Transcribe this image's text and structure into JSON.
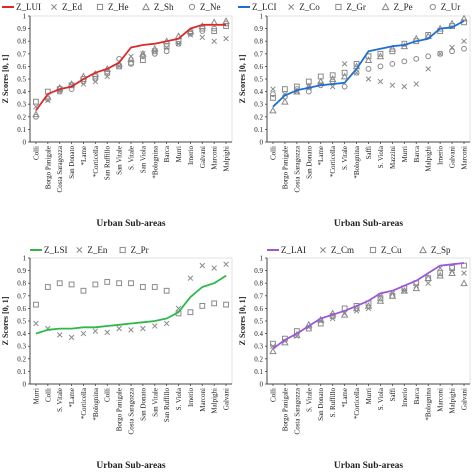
{
  "figure": {
    "background": "#ffffff",
    "axis_color": "#444444"
  },
  "chart_data": [
    {
      "id": "lui",
      "type": "line",
      "line_color": "#d92b2b",
      "xlabel": "Urban Sub-areas",
      "ylabel": "Z Scores [0, 1]",
      "ylim": [
        0,
        1
      ],
      "yticks": [
        "0",
        "0.1",
        "0.2",
        "0.3",
        "0.4",
        "0.5",
        "0.6",
        "0.7",
        "0.8",
        "0.9",
        "1"
      ],
      "legend_position": "top",
      "legend": [
        {
          "name": "Z_LUI",
          "marker": "line"
        },
        {
          "name": "Z_Ed",
          "marker": "x"
        },
        {
          "name": "Z_He",
          "marker": "square"
        },
        {
          "name": "Z_Sh",
          "marker": "triangle"
        },
        {
          "name": "Z_Ne",
          "marker": "circle"
        }
      ],
      "categories": [
        "Colli",
        "Borgo Panigale",
        "Costa Saragozza",
        "San Donato",
        "*Lame",
        "*Corticella",
        "San Ruffillo",
        "San Vitale",
        "S. Vitale",
        "San Viola",
        "*Bolognina",
        "Barca",
        "Murri",
        "Irnerio",
        "Galvani",
        "Marconi",
        "Malpighi"
      ],
      "series": [
        {
          "name": "Z_LUI",
          "marker": "line",
          "values": [
            0.25,
            0.38,
            0.42,
            0.44,
            0.5,
            0.55,
            0.58,
            0.63,
            0.75,
            0.77,
            0.78,
            0.8,
            0.82,
            0.9,
            0.93,
            0.93,
            0.93
          ]
        },
        {
          "name": "Z_Ed",
          "marker": "x",
          "values": [
            0.28,
            0.33,
            0.4,
            0.45,
            0.46,
            0.48,
            0.52,
            0.6,
            0.68,
            0.7,
            0.72,
            0.75,
            0.78,
            0.85,
            0.83,
            0.8,
            0.82
          ]
        },
        {
          "name": "Z_He",
          "marker": "square",
          "values": [
            0.32,
            0.4,
            0.42,
            0.45,
            0.5,
            0.52,
            0.55,
            0.6,
            0.63,
            0.65,
            0.72,
            0.76,
            0.8,
            0.87,
            0.9,
            0.88,
            0.92
          ]
        },
        {
          "name": "Z_Sh",
          "marker": "triangle",
          "values": [
            0.22,
            0.36,
            0.43,
            0.46,
            0.52,
            0.54,
            0.58,
            0.62,
            0.66,
            0.7,
            0.74,
            0.8,
            0.84,
            0.88,
            0.92,
            0.95,
            0.96
          ]
        },
        {
          "name": "Z_Ne",
          "marker": "circle",
          "values": [
            0.2,
            0.34,
            0.4,
            0.42,
            0.48,
            0.5,
            0.56,
            0.66,
            0.62,
            0.68,
            0.7,
            0.72,
            0.78,
            0.86,
            0.88,
            0.9,
            0.94
          ]
        }
      ]
    },
    {
      "id": "lci",
      "type": "line",
      "line_color": "#1f6fd1",
      "xlabel": "Urban Sub-areas",
      "ylabel": "Z Scores [0, 1]",
      "ylim": [
        0,
        1
      ],
      "yticks": [
        "0",
        "0.1",
        "0.2",
        "0.3",
        "0.4",
        "0.5",
        "0.6",
        "0.7",
        "0.8",
        "0.9",
        "1"
      ],
      "legend_position": "top",
      "legend": [
        {
          "name": "Z_LCI",
          "marker": "line"
        },
        {
          "name": "Z_Co",
          "marker": "x"
        },
        {
          "name": "Z_Gr",
          "marker": "square"
        },
        {
          "name": "Z_Pe",
          "marker": "triangle"
        },
        {
          "name": "Z_Ur",
          "marker": "circle"
        }
      ],
      "categories": [
        "Colli",
        "Borgo Panigale",
        "Costa Saragozza",
        "San Donato",
        "*Lame",
        "*Corticella",
        "S. Vitale",
        "*Bolognina",
        "Saffi",
        "S. Viola",
        "Mazzini",
        "Murri",
        "Barca",
        "Malpighi",
        "Irnerio",
        "Galvani",
        "Marconi"
      ],
      "series": [
        {
          "name": "Z_LCI",
          "marker": "line",
          "values": [
            0.28,
            0.37,
            0.41,
            0.43,
            0.45,
            0.46,
            0.47,
            0.58,
            0.72,
            0.74,
            0.76,
            0.77,
            0.8,
            0.82,
            0.9,
            0.91,
            0.96
          ]
        },
        {
          "name": "Z_Co",
          "marker": "x",
          "values": [
            0.42,
            0.38,
            0.4,
            0.44,
            0.46,
            0.44,
            0.62,
            0.55,
            0.5,
            0.48,
            0.45,
            0.44,
            0.46,
            0.58,
            0.7,
            0.75,
            0.8
          ]
        },
        {
          "name": "Z_Gr",
          "marker": "square",
          "values": [
            0.35,
            0.42,
            0.44,
            0.48,
            0.52,
            0.53,
            0.55,
            0.62,
            0.68,
            0.7,
            0.72,
            0.78,
            0.8,
            0.85,
            0.88,
            0.92,
            0.95
          ]
        },
        {
          "name": "Z_Pe",
          "marker": "triangle",
          "values": [
            0.25,
            0.32,
            0.4,
            0.44,
            0.48,
            0.5,
            0.52,
            0.6,
            0.65,
            0.68,
            0.74,
            0.76,
            0.82,
            0.84,
            0.9,
            0.94,
            0.98
          ]
        },
        {
          "name": "Z_Ur",
          "marker": "circle",
          "values": [
            0.38,
            0.36,
            0.42,
            0.4,
            0.45,
            0.48,
            0.44,
            0.55,
            0.58,
            0.6,
            0.62,
            0.64,
            0.66,
            0.68,
            0.7,
            0.72,
            0.74
          ]
        }
      ]
    },
    {
      "id": "lsi",
      "type": "line",
      "line_color": "#2fb84a",
      "xlabel": "Urban Sub-areas",
      "ylabel": "Z Scores [0, 1]",
      "ylim": [
        0,
        1
      ],
      "yticks": [
        "0",
        "0.1",
        "0.2",
        "0.3",
        "0.4",
        "0.5",
        "0.6",
        "0.7",
        "0.8",
        "0.9",
        "1"
      ],
      "legend_position": "top",
      "legend": [
        {
          "name": "Z_LSI",
          "marker": "line"
        },
        {
          "name": "Z_En",
          "marker": "x"
        },
        {
          "name": "Z_Pr",
          "marker": "square"
        }
      ],
      "categories": [
        "Murri",
        "Colli",
        "S. Vitale",
        "*Lame",
        "*Corticella",
        "*Bolognina",
        "Colli",
        "Borgo Panigale",
        "Costa Saragozza",
        "San Donato",
        "San Vitale",
        "San Ruffillo",
        "S. Viola",
        "Irnerio",
        "Marconi",
        "Malpighi",
        "Galvani"
      ],
      "series": [
        {
          "name": "Z_LSI",
          "marker": "line",
          "values": [
            0.4,
            0.43,
            0.44,
            0.44,
            0.45,
            0.45,
            0.46,
            0.47,
            0.48,
            0.49,
            0.5,
            0.52,
            0.57,
            0.69,
            0.77,
            0.8,
            0.86
          ]
        },
        {
          "name": "Z_En",
          "marker": "x",
          "values": [
            0.48,
            0.44,
            0.39,
            0.37,
            0.4,
            0.42,
            0.41,
            0.44,
            0.43,
            0.44,
            0.46,
            0.48,
            0.6,
            0.84,
            0.94,
            0.92,
            0.95
          ]
        },
        {
          "name": "Z_Pr",
          "marker": "square",
          "values": [
            0.63,
            0.77,
            0.8,
            0.79,
            0.74,
            0.79,
            0.81,
            0.8,
            0.8,
            0.77,
            0.77,
            0.74,
            0.56,
            0.57,
            0.62,
            0.64,
            0.63
          ]
        }
      ]
    },
    {
      "id": "lai",
      "type": "line",
      "line_color": "#9b59d6",
      "xlabel": "Urban Sub-areas",
      "ylabel": "Z Scores [0, 1]",
      "ylim": [
        0,
        1
      ],
      "yticks": [
        "0",
        "0.1",
        "0.2",
        "0.3",
        "0.4",
        "0.5",
        "0.6",
        "0.7",
        "0.8",
        "0.9",
        "1"
      ],
      "legend_position": "top",
      "legend": [
        {
          "name": "Z_LAI",
          "marker": "line"
        },
        {
          "name": "Z_Cm",
          "marker": "x"
        },
        {
          "name": "Z_Cu",
          "marker": "square"
        },
        {
          "name": "Z_Sp",
          "marker": "triangle"
        }
      ],
      "categories": [
        "Colli",
        "Borgo Panigale",
        "Costa Saragozza",
        "S. Vitale",
        "San Donato",
        "S. Ruffillo",
        "*Lame",
        "*Corticella",
        "Murri",
        "S. Viola",
        "Saffi",
        "Irnerio",
        "Barca",
        "*Bolognina",
        "Marconi",
        "Malpighi",
        "Galvani"
      ],
      "series": [
        {
          "name": "Z_LAI",
          "marker": "line",
          "values": [
            0.28,
            0.35,
            0.4,
            0.46,
            0.52,
            0.55,
            0.58,
            0.62,
            0.66,
            0.72,
            0.74,
            0.78,
            0.82,
            0.88,
            0.94,
            0.95,
            0.96
          ]
        },
        {
          "name": "Z_Cm",
          "marker": "x",
          "values": [
            0.3,
            0.34,
            0.38,
            0.45,
            0.5,
            0.52,
            0.56,
            0.58,
            0.6,
            0.7,
            0.72,
            0.74,
            0.78,
            0.8,
            0.92,
            0.9,
            0.88
          ]
        },
        {
          "name": "Z_Cu",
          "marker": "square",
          "values": [
            0.32,
            0.36,
            0.42,
            0.44,
            0.48,
            0.54,
            0.6,
            0.62,
            0.64,
            0.68,
            0.7,
            0.76,
            0.8,
            0.84,
            0.88,
            0.92,
            0.94
          ]
        },
        {
          "name": "Z_Sp",
          "marker": "triangle",
          "values": [
            0.26,
            0.33,
            0.39,
            0.47,
            0.51,
            0.56,
            0.55,
            0.6,
            0.62,
            0.66,
            0.7,
            0.74,
            0.76,
            0.84,
            0.86,
            0.88,
            0.8
          ]
        }
      ]
    }
  ]
}
